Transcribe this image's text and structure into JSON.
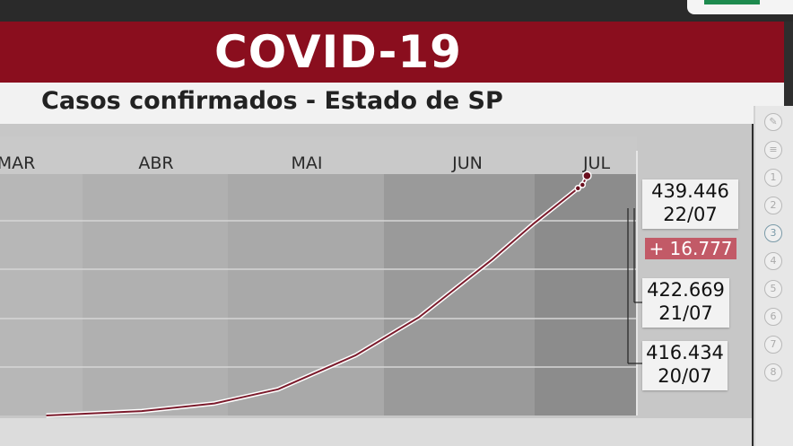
{
  "header": {
    "title": "COVID-19",
    "subtitle": "Casos confirmados - Estado de SP"
  },
  "colors": {
    "brand_red": "#8a0e1e",
    "line": "#7b1b2c",
    "delta_bg": "#c25a67"
  },
  "toolbar": {
    "items": [
      "pen-icon",
      "note-icon",
      "1",
      "2",
      "3",
      "4",
      "5",
      "6",
      "7",
      "8"
    ],
    "selected": "3"
  },
  "chart_data": {
    "type": "line",
    "title": "Casos confirmados - Estado de SP",
    "x_tick_labels": [
      "MAR",
      "ABR",
      "MAI",
      "JUN",
      "JUL"
    ],
    "grid": true,
    "series": [
      {
        "points": [
          {
            "x": "2020-03-25",
            "y": 0
          },
          {
            "x": "2020-04-15",
            "y": 8000
          },
          {
            "x": "2020-05-01",
            "y": 22000
          },
          {
            "x": "2020-05-15",
            "y": 48000
          },
          {
            "x": "2020-06-01",
            "y": 110000
          },
          {
            "x": "2020-06-15",
            "y": 180000
          },
          {
            "x": "2020-07-01",
            "y": 285000
          },
          {
            "x": "2020-07-10",
            "y": 350000
          },
          {
            "x": "2020-07-20",
            "y": 416434
          },
          {
            "x": "2020-07-21",
            "y": 422669
          },
          {
            "x": "2020-07-22",
            "y": 439446
          }
        ]
      }
    ],
    "callouts": [
      {
        "value": "439.446",
        "date": "22/07"
      },
      {
        "value": "422.669",
        "date": "21/07"
      },
      {
        "value": "416.434",
        "date": "20/07"
      }
    ],
    "delta": "+ 16.777"
  }
}
